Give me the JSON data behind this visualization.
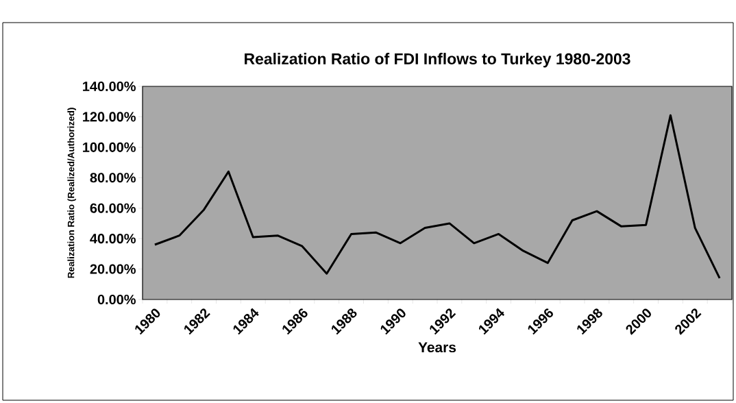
{
  "chart_data": {
    "type": "line",
    "title": "Realization Ratio of FDI Inflows to Turkey 1980-2003",
    "xlabel": "Years",
    "ylabel": "Realization Ratio (Realized/Authorized)",
    "categories": [
      "1980",
      null,
      "1982",
      null,
      "1984",
      null,
      "1986",
      null,
      "1988",
      null,
      "1990",
      null,
      "1992",
      null,
      "1994",
      null,
      "1996",
      null,
      "1998",
      null,
      "2000",
      null,
      "2002",
      null
    ],
    "series": [
      {
        "color": "#000000",
        "values": [
          36,
          42,
          59,
          84,
          41,
          42,
          35,
          17,
          43,
          44,
          37,
          47,
          50,
          37,
          43,
          32,
          24,
          52,
          58,
          48,
          49,
          121,
          47,
          14
        ]
      }
    ],
    "ylim": [
      0,
      140
    ],
    "yticks": [
      {
        "value": 0,
        "label": "0.00%"
      },
      {
        "value": 20,
        "label": "20.00%"
      },
      {
        "value": 40,
        "label": "40.00%"
      },
      {
        "value": 60,
        "label": "60.00%"
      },
      {
        "value": 80,
        "label": "80.00%"
      },
      {
        "value": 100,
        "label": "100.00%"
      },
      {
        "value": 120,
        "label": "120.00%"
      },
      {
        "value": 140,
        "label": "140.00%"
      }
    ],
    "marker": "none",
    "line_style": "solid"
  }
}
